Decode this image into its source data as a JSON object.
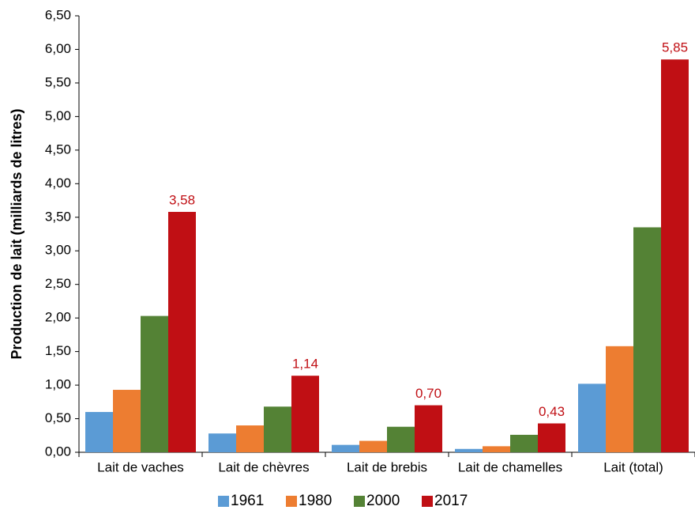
{
  "chart_data": {
    "type": "bar",
    "y_label": "Production de lait (milliards de litres)",
    "categories": [
      "Lait de vaches",
      "Lait de chèvres",
      "Lait de brebis",
      "Lait de chamelles",
      "Lait (total)"
    ],
    "series": [
      {
        "name": "1961",
        "color": "#5b9bd5",
        "values": [
          0.6,
          0.28,
          0.11,
          0.05,
          1.02
        ]
      },
      {
        "name": "1980",
        "color": "#ed7d31",
        "values": [
          0.93,
          0.4,
          0.17,
          0.09,
          1.58
        ]
      },
      {
        "name": "2000",
        "color": "#548235",
        "values": [
          2.03,
          0.68,
          0.38,
          0.26,
          3.35
        ]
      },
      {
        "name": "2017",
        "color": "#c00f14",
        "values": [
          3.58,
          1.14,
          0.7,
          0.43,
          5.85
        ],
        "value_labels": [
          "3,58",
          "1,14",
          "0,70",
          "0,43",
          "5,85"
        ]
      }
    ],
    "ylim": [
      0,
      6.5
    ],
    "yticks": [
      {
        "value": 0,
        "label": "0,00"
      },
      {
        "value": 0.5,
        "label": "0,50"
      },
      {
        "value": 1,
        "label": "1,00"
      },
      {
        "value": 1.5,
        "label": "1,50"
      },
      {
        "value": 2,
        "label": "2,00"
      },
      {
        "value": 2.5,
        "label": "2,50"
      },
      {
        "value": 3,
        "label": "3,00"
      },
      {
        "value": 3.5,
        "label": "3,50"
      },
      {
        "value": 4,
        "label": "4,00"
      },
      {
        "value": 4.5,
        "label": "4,50"
      },
      {
        "value": 5,
        "label": "5,00"
      },
      {
        "value": 5.5,
        "label": "5,50"
      },
      {
        "value": 6,
        "label": "6,00"
      },
      {
        "value": 6.5,
        "label": "6,50"
      }
    ],
    "grid": false,
    "legend": "bottom"
  }
}
